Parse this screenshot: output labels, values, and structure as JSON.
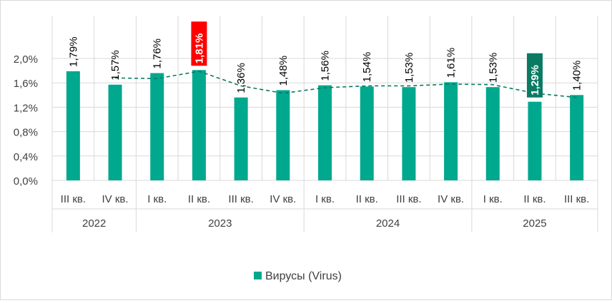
{
  "chart_data": {
    "type": "bar",
    "categories": [
      "III кв.",
      "IV кв.",
      "I кв.",
      "II кв.",
      "III кв.",
      "IV кв.",
      "I кв.",
      "II кв.",
      "III кв.",
      "IV кв.",
      "I кв.",
      "II кв.",
      "III кв."
    ],
    "groups": [
      {
        "label": "2022",
        "span": 2
      },
      {
        "label": "2023",
        "span": 4
      },
      {
        "label": "2024",
        "span": 4
      },
      {
        "label": "2025",
        "span": 3
      }
    ],
    "series": [
      {
        "name": "Вирусы (Virus)",
        "color": "#00a88e",
        "values": [
          1.79,
          1.57,
          1.76,
          1.81,
          1.36,
          1.48,
          1.56,
          1.54,
          1.53,
          1.61,
          1.53,
          1.29,
          1.4
        ],
        "data_labels": [
          "1,79%",
          "1,57%",
          "1,76%",
          "1,81%",
          "1,36%",
          "1,48%",
          "1,56%",
          "1,54%",
          "1,53%",
          "1,61%",
          "1,53%",
          "1,29%",
          "1,40%"
        ]
      }
    ],
    "trendline": {
      "style": "dashed",
      "color": "#0a7a63",
      "values": [
        null,
        1.68,
        1.67,
        1.79,
        1.55,
        1.43,
        1.52,
        1.55,
        1.55,
        1.58,
        1.57,
        1.43,
        1.36
      ]
    },
    "highlights": [
      {
        "index": 3,
        "bg": "#ff0000",
        "color": "#ffffff"
      },
      {
        "index": 11,
        "bg": "#0a7a63",
        "color": "#ffffff"
      }
    ],
    "ylim": [
      0,
      2.0
    ],
    "yticks": [
      0,
      0.4,
      0.8,
      1.2,
      1.6,
      2.0
    ],
    "ytick_labels": [
      "0,0%",
      "0,4%",
      "0,8%",
      "1,2%",
      "1,6%",
      "2,0%"
    ],
    "grid": true,
    "legend_position": "bottom",
    "title": "",
    "xlabel": "",
    "ylabel": ""
  }
}
